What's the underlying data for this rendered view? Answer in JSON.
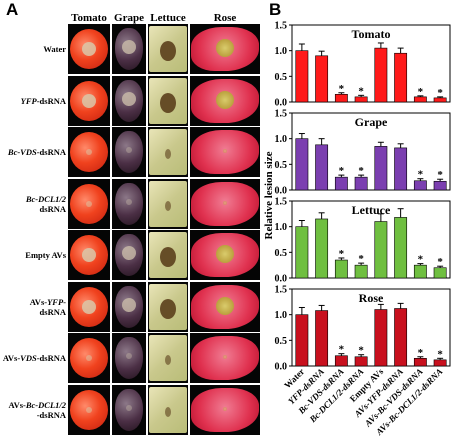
{
  "panelA": {
    "letter": "A",
    "columns": [
      "Tomato",
      "Grape",
      "Lettuce",
      "Rose"
    ],
    "rows": [
      {
        "pre": "",
        "it": "",
        "post": "Water",
        "l2": ""
      },
      {
        "pre": "",
        "it": "YFP",
        "post": "-dsRNA",
        "l2": ""
      },
      {
        "pre": "",
        "it": "Bc-VDS",
        "post": "-dsRNA",
        "l2": ""
      },
      {
        "pre": "",
        "it": "Bc-DCL1/2",
        "post": "",
        "l2": "dsRNA"
      },
      {
        "pre": "",
        "it": "",
        "post": "Empty AVs",
        "l2": ""
      },
      {
        "pre": "AVs-",
        "it": "YFP",
        "post": "-",
        "l2": "dsRNA"
      },
      {
        "pre": "AVs-",
        "it": "VDS",
        "post": "-dsRNA",
        "l2": ""
      },
      {
        "pre": "AVs-",
        "it": "Bc-DCL1/2",
        "post": "",
        "l2": "-dsRNA"
      }
    ],
    "lesion_colors": {
      "tomato": "#d9c7a8",
      "grape": "#c9bba9",
      "lettuce": "#5b3f1c",
      "rose": "#b8a33a"
    }
  },
  "chart_data": {
    "letter": "B",
    "type": "bar",
    "ylabel": "Relative lesion size",
    "categories": [
      "Water",
      "YFP-dsRNA",
      "Bc-VDS-dsRNA",
      "Bc-DCL1/2-dsRNA",
      "Empty AVs",
      "AVs-YFP-dsRNA",
      "AVs-Bc-VDS-dsRNA",
      "AVs-Bc-DCL1/2-dsRNA"
    ],
    "category_labels": [
      "Water",
      "YFP-dsRNA",
      "Bc-VDS-dsRNA",
      "Bc-DCL1/2-dsRNA",
      "Empty AVs",
      "AVs-YFP-dsRNA",
      "AVs-Bc-VDS-dsRNA",
      "AVs-Bc-DCL1/2-dsRNA"
    ],
    "ylim": [
      0,
      1.5
    ],
    "yticks": [
      0.0,
      0.5,
      1.0,
      1.5
    ],
    "ytick_labels": [
      "0.0",
      "0.5",
      "1.0",
      "1.5"
    ],
    "significance_marker": "*",
    "panels": [
      {
        "title": "Tomato",
        "color": "#ff1a1a",
        "values": [
          1.0,
          0.9,
          0.15,
          0.1,
          1.05,
          0.95,
          0.1,
          0.08
        ],
        "errors": [
          0.13,
          0.09,
          0.03,
          0.03,
          0.1,
          0.1,
          0.02,
          0.02
        ],
        "significant": [
          false,
          false,
          true,
          true,
          false,
          false,
          true,
          true
        ]
      },
      {
        "title": "Grape",
        "color": "#7b3fb0",
        "values": [
          1.0,
          0.88,
          0.25,
          0.25,
          0.85,
          0.82,
          0.18,
          0.17
        ],
        "errors": [
          0.1,
          0.12,
          0.04,
          0.04,
          0.08,
          0.08,
          0.04,
          0.04
        ],
        "significant": [
          false,
          false,
          true,
          true,
          false,
          false,
          true,
          true
        ]
      },
      {
        "title": "Lettuce",
        "color": "#6fbf40",
        "values": [
          1.0,
          1.15,
          0.35,
          0.25,
          1.1,
          1.18,
          0.25,
          0.2
        ],
        "errors": [
          0.12,
          0.12,
          0.04,
          0.04,
          0.15,
          0.17,
          0.03,
          0.03
        ],
        "significant": [
          false,
          false,
          true,
          true,
          false,
          false,
          true,
          true
        ]
      },
      {
        "title": "Rose",
        "color": "#c8101e",
        "values": [
          1.0,
          1.08,
          0.2,
          0.18,
          1.1,
          1.12,
          0.15,
          0.12
        ],
        "errors": [
          0.14,
          0.1,
          0.04,
          0.04,
          0.1,
          0.1,
          0.03,
          0.03
        ],
        "significant": [
          false,
          false,
          true,
          true,
          false,
          false,
          true,
          true
        ]
      }
    ]
  }
}
